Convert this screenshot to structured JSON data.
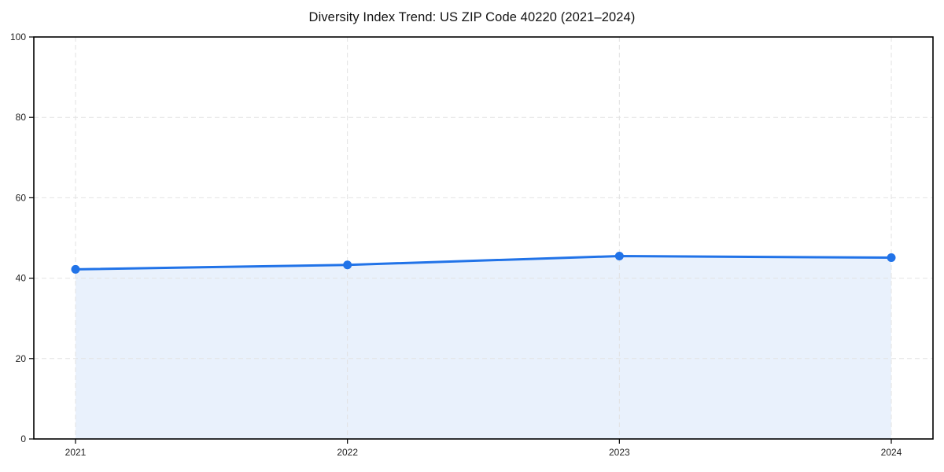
{
  "page": {
    "background": "#ffffff"
  },
  "chart_data": {
    "type": "line",
    "style": "line-with-area-fill-and-markers",
    "title": "Diversity Index Trend: US ZIP Code 40220 (2021–2024)",
    "categories": [
      "2021",
      "2022",
      "2023",
      "2024"
    ],
    "series": [
      {
        "name": "Diversity Index",
        "values": [
          42.2,
          43.3,
          45.5,
          45.1
        ]
      }
    ],
    "xlabel": "",
    "ylabel": "",
    "ylim": [
      0,
      100
    ],
    "yticks": [
      0,
      20,
      40,
      60,
      80,
      100
    ],
    "grid": "dashed horizontal and vertical gridlines",
    "legend": "none",
    "colors": {
      "line": "#2173e8",
      "marker": "#2173e8",
      "area_fill": "#e9f1fc",
      "grid": "#e2e2e2",
      "spine": "#000000",
      "tick_text": "#1f1f1f",
      "title_text": "#111111"
    }
  }
}
